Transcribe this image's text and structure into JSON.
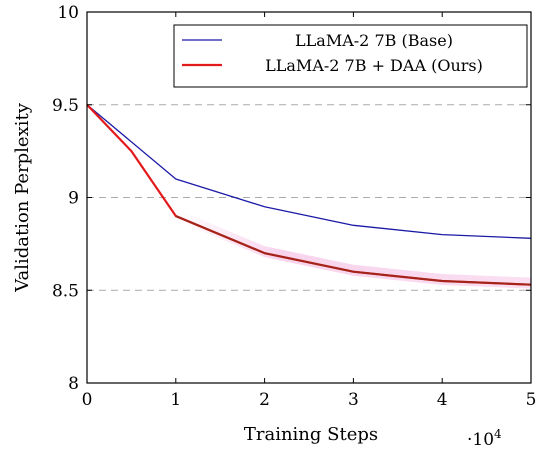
{
  "chart_data": {
    "type": "line",
    "xlabel": "Training Steps",
    "ylabel": "Validation Perplexity",
    "x_scale_label": "·10",
    "x_scale_exponent": "4",
    "xlim": [
      0,
      5
    ],
    "ylim": [
      8,
      10
    ],
    "xticks": [
      0,
      1,
      2,
      3,
      4,
      5
    ],
    "yticks": [
      8,
      8.5,
      9,
      9.5,
      10
    ],
    "ytick_labels": [
      "8",
      "8.5",
      "9",
      "9.5",
      "10"
    ],
    "gridlines_y": [
      8.5,
      9,
      9.5
    ],
    "grid": "dashed horizontal",
    "legend_position": "top-right",
    "series": [
      {
        "name": "LLaMA-2 7B (Base)",
        "color": "#1a1aa6",
        "x": [
          0,
          1,
          2,
          3,
          4,
          5
        ],
        "y": [
          9.5,
          9.1,
          8.95,
          8.85,
          8.8,
          8.78
        ]
      },
      {
        "name": "LLaMA-2 7B + DAA (Ours)",
        "color": "#e31a1c",
        "x": [
          0,
          0.5,
          1,
          2,
          3,
          4,
          5
        ],
        "y": [
          9.5,
          9.25,
          8.9,
          8.7,
          8.6,
          8.55,
          8.53
        ]
      }
    ]
  }
}
